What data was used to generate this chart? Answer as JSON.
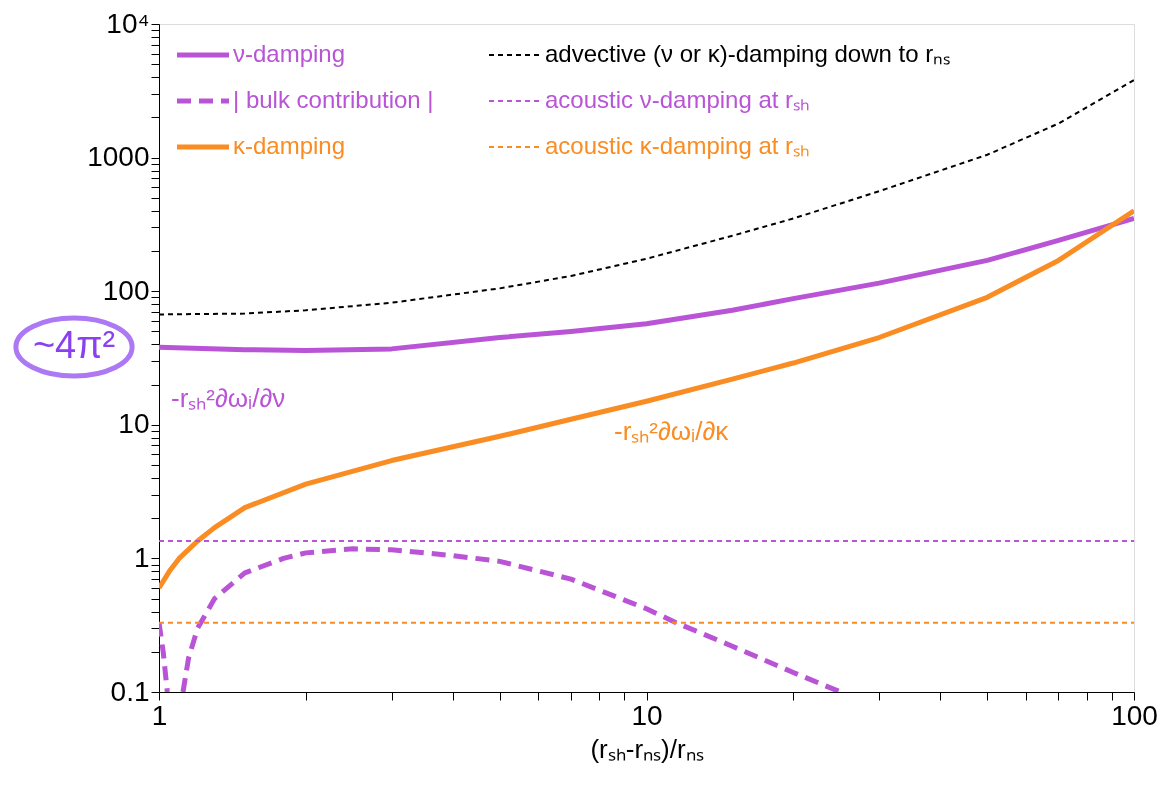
{
  "chart_data": {
    "type": "line",
    "xlabel": "(rₛₕ-rₙₛ)/rₙₛ",
    "log": "xy",
    "grid": false,
    "legend": "top left",
    "marker": "none",
    "xlim": [
      1,
      100
    ],
    "ylim": [
      0.1,
      10000
    ],
    "xticks": [
      1,
      {
        "value": 2,
        "label": null
      },
      {
        "value": 3,
        "label": null
      },
      {
        "value": 4,
        "label": null
      },
      {
        "value": 5,
        "label": null
      },
      {
        "value": 6,
        "label": null
      },
      {
        "value": 7,
        "label": null
      },
      {
        "value": 8,
        "label": null
      },
      {
        "value": 9,
        "label": null
      },
      10,
      {
        "value": 20,
        "label": null
      },
      {
        "value": 30,
        "label": null
      },
      {
        "value": 40,
        "label": null
      },
      {
        "value": 50,
        "label": null
      },
      {
        "value": 60,
        "label": null
      },
      {
        "value": 70,
        "label": null
      },
      {
        "value": 80,
        "label": null
      },
      {
        "value": 90,
        "label": null
      },
      100
    ],
    "yticks": [
      0.1,
      {
        "value": 0.2,
        "label": null
      },
      {
        "value": 0.3,
        "label": null
      },
      {
        "value": 0.4,
        "label": null
      },
      {
        "value": 0.5,
        "label": null
      },
      {
        "value": 0.6,
        "label": null
      },
      {
        "value": 0.7,
        "label": null
      },
      {
        "value": 0.8,
        "label": null
      },
      {
        "value": 0.9,
        "label": null
      },
      1,
      {
        "value": 2,
        "label": null
      },
      {
        "value": 3,
        "label": null
      },
      {
        "value": 4,
        "label": null
      },
      {
        "value": 5,
        "label": null
      },
      {
        "value": 6,
        "label": null
      },
      {
        "value": 7,
        "label": null
      },
      {
        "value": 8,
        "label": null
      },
      {
        "value": 9,
        "label": null
      },
      10,
      {
        "value": 20,
        "label": null
      },
      {
        "value": 30,
        "label": null
      },
      {
        "value": 40,
        "label": null
      },
      {
        "value": 50,
        "label": null
      },
      {
        "value": 60,
        "label": null
      },
      {
        "value": 70,
        "label": null
      },
      {
        "value": 80,
        "label": null
      },
      {
        "value": 90,
        "label": null
      },
      100,
      {
        "value": 200,
        "label": null
      },
      {
        "value": 300,
        "label": null
      },
      {
        "value": 400,
        "label": null
      },
      {
        "value": 500,
        "label": null
      },
      {
        "value": 600,
        "label": null
      },
      {
        "value": 700,
        "label": null
      },
      {
        "value": 800,
        "label": null
      },
      {
        "value": 900,
        "label": null
      },
      1000,
      {
        "value": 2000,
        "label": null
      },
      {
        "value": 3000,
        "label": null
      },
      {
        "value": 4000,
        "label": null
      },
      {
        "value": 5000,
        "label": null
      },
      {
        "value": 6000,
        "label": null
      },
      {
        "value": 7000,
        "label": null
      },
      {
        "value": 8000,
        "label": null
      },
      {
        "value": 9000,
        "label": null
      },
      {
        "value": 10000,
        "label": "10⁴"
      }
    ],
    "series": [
      {
        "name": "ν-damping",
        "color": "#b954d6",
        "line_style": "solid",
        "x": [
          1,
          1.5,
          2,
          3,
          5,
          7,
          10,
          15,
          20,
          30,
          50,
          70,
          100
        ],
        "values": [
          38,
          36.5,
          36,
          37,
          45,
          50,
          57,
          72,
          88,
          115,
          170,
          240,
          350
        ]
      },
      {
        "name": "| bulk contribution |",
        "color": "#b954d6",
        "line_style": "dashed",
        "x": [
          1,
          1.02,
          1.04,
          1.08,
          1.12,
          1.15,
          1.2,
          1.3,
          1.5,
          1.8,
          2,
          2.5,
          3,
          4,
          5,
          7,
          10,
          11.5,
          15,
          20,
          25
        ],
        "values": [
          0.33,
          0.2,
          0.1,
          null,
          0.1,
          0.18,
          0.3,
          0.5,
          0.78,
          1.0,
          1.1,
          1.18,
          1.16,
          1.05,
          0.95,
          0.7,
          0.42,
          0.33,
          0.22,
          0.14,
          0.1
        ]
      },
      {
        "name": "κ-damping",
        "color": "#f98c22",
        "line_style": "solid",
        "x": [
          1,
          1.05,
          1.1,
          1.2,
          1.3,
          1.5,
          2,
          3,
          5,
          7,
          10,
          15,
          20,
          30,
          50,
          70,
          100
        ],
        "values": [
          0.6,
          0.8,
          1.0,
          1.35,
          1.7,
          2.4,
          3.6,
          5.4,
          8.2,
          11,
          15,
          22,
          29,
          45,
          90,
          170,
          400
        ]
      },
      {
        "name": "advective (ν or κ)-damping down to rₙₛ",
        "color": "#000000",
        "line_style": "dotted",
        "x": [
          1,
          1.5,
          2,
          3,
          5,
          7,
          10,
          15,
          20,
          30,
          50,
          70,
          100
        ],
        "values": [
          67,
          68,
          72,
          82,
          105,
          130,
          175,
          260,
          350,
          560,
          1050,
          1800,
          3800
        ]
      }
    ],
    "ref_lines": [
      {
        "axis": "y",
        "value": 1.35,
        "label": "acoustic ν-damping at rₛₕ",
        "color": "#b954d6",
        "line_style": "dotted"
      },
      {
        "axis": "y",
        "value": 0.33,
        "label": "acoustic κ-damping at rₛₕ",
        "color": "#f98c22",
        "line_style": "dotted"
      }
    ],
    "annotations": [
      "~4π²",
      "-rₛₕ²∂ωᵢ/∂ν",
      "-rₛₕ²∂ωᵢ/∂κ"
    ]
  }
}
